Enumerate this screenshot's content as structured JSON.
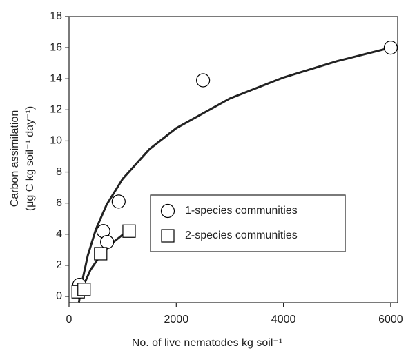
{
  "chart_data": {
    "type": "scatter",
    "xlabel": "No. of live nematodes kg soil⁻¹",
    "ylabel": [
      "Carbon assimilation",
      "(μg C kg soil⁻¹ day⁻¹)"
    ],
    "xlim": [
      0,
      6130
    ],
    "ylim": [
      -0.4,
      18
    ],
    "xticks": [
      0,
      2000,
      4000,
      6000
    ],
    "yticks": [
      0,
      2,
      4,
      6,
      8,
      10,
      12,
      14,
      16,
      18
    ],
    "series": [
      {
        "name": "1-species communities",
        "marker": "circle",
        "color": "#000000",
        "x": [
          193,
          640,
          710,
          925,
          2500,
          6000
        ],
        "values": [
          0.75,
          4.2,
          3.5,
          6.1,
          13.9,
          16.0
        ]
      },
      {
        "name": "2-species communities",
        "marker": "square",
        "color": "#000000",
        "x": [
          170,
          280,
          590,
          1120
        ],
        "values": [
          0.3,
          0.45,
          2.75,
          4.2
        ]
      }
    ],
    "fits": [
      {
        "color": "#222222",
        "x": [
          185,
          250,
          350,
          500,
          700,
          1000,
          1500,
          2000,
          3000,
          4000,
          5000,
          6000
        ],
        "values": [
          -0.37,
          1.05,
          2.63,
          4.31,
          5.89,
          7.56,
          9.47,
          10.82,
          12.73,
          14.08,
          15.13,
          16.0
        ]
      },
      {
        "color": "#222222",
        "x": [
          185,
          250,
          400,
          600,
          800,
          1050
        ],
        "values": [
          -0.19,
          0.55,
          1.71,
          2.71,
          3.42,
          4.1
        ]
      }
    ]
  }
}
